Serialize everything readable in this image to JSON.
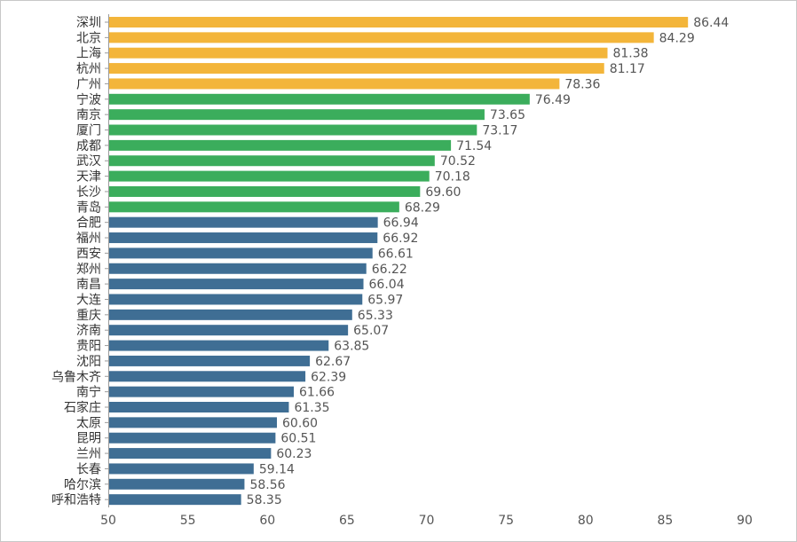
{
  "chart_data": {
    "type": "bar",
    "orientation": "horizontal",
    "categories": [
      "深圳",
      "北京",
      "上海",
      "杭州",
      "广州",
      "宁波",
      "南京",
      "厦门",
      "成都",
      "武汉",
      "天津",
      "长沙",
      "青岛",
      "合肥",
      "福州",
      "西安",
      "郑州",
      "南昌",
      "大连",
      "重庆",
      "济南",
      "贵阳",
      "沈阳",
      "乌鲁木齐",
      "南宁",
      "石家庄",
      "太原",
      "昆明",
      "兰州",
      "长春",
      "哈尔滨",
      "呼和浩特"
    ],
    "values": [
      86.44,
      84.29,
      81.38,
      81.17,
      78.36,
      76.49,
      73.65,
      73.17,
      71.54,
      70.52,
      70.18,
      69.6,
      68.29,
      66.94,
      66.92,
      66.61,
      66.22,
      66.04,
      65.97,
      65.33,
      65.07,
      63.85,
      62.67,
      62.39,
      61.66,
      61.35,
      60.6,
      60.51,
      60.23,
      59.14,
      58.56,
      58.35
    ],
    "value_labels": [
      "86.44",
      "84.29",
      "81.38",
      "81.17",
      "78.36",
      "76.49",
      "73.65",
      "73.17",
      "71.54",
      "70.52",
      "70.18",
      "69.60",
      "68.29",
      "66.94",
      "66.92",
      "66.61",
      "66.22",
      "66.04",
      "65.97",
      "65.33",
      "65.07",
      "63.85",
      "62.67",
      "62.39",
      "61.66",
      "61.35",
      "60.60",
      "60.51",
      "60.23",
      "59.14",
      "58.56",
      "58.35"
    ],
    "groups": [
      0,
      0,
      0,
      0,
      0,
      1,
      1,
      1,
      1,
      1,
      1,
      1,
      1,
      2,
      2,
      2,
      2,
      2,
      2,
      2,
      2,
      2,
      2,
      2,
      2,
      2,
      2,
      2,
      2,
      2,
      2,
      2
    ],
    "group_colors": [
      "#f3b53a",
      "#3bad5c",
      "#3f6e94"
    ],
    "xlim": [
      50,
      90
    ],
    "xticks": [
      50,
      55,
      60,
      65,
      70,
      75,
      80,
      85,
      90
    ],
    "xtick_labels": [
      "50",
      "55",
      "60",
      "65",
      "70",
      "75",
      "80",
      "85",
      "90"
    ],
    "grid": false,
    "title": "",
    "xlabel": "",
    "ylabel": ""
  }
}
